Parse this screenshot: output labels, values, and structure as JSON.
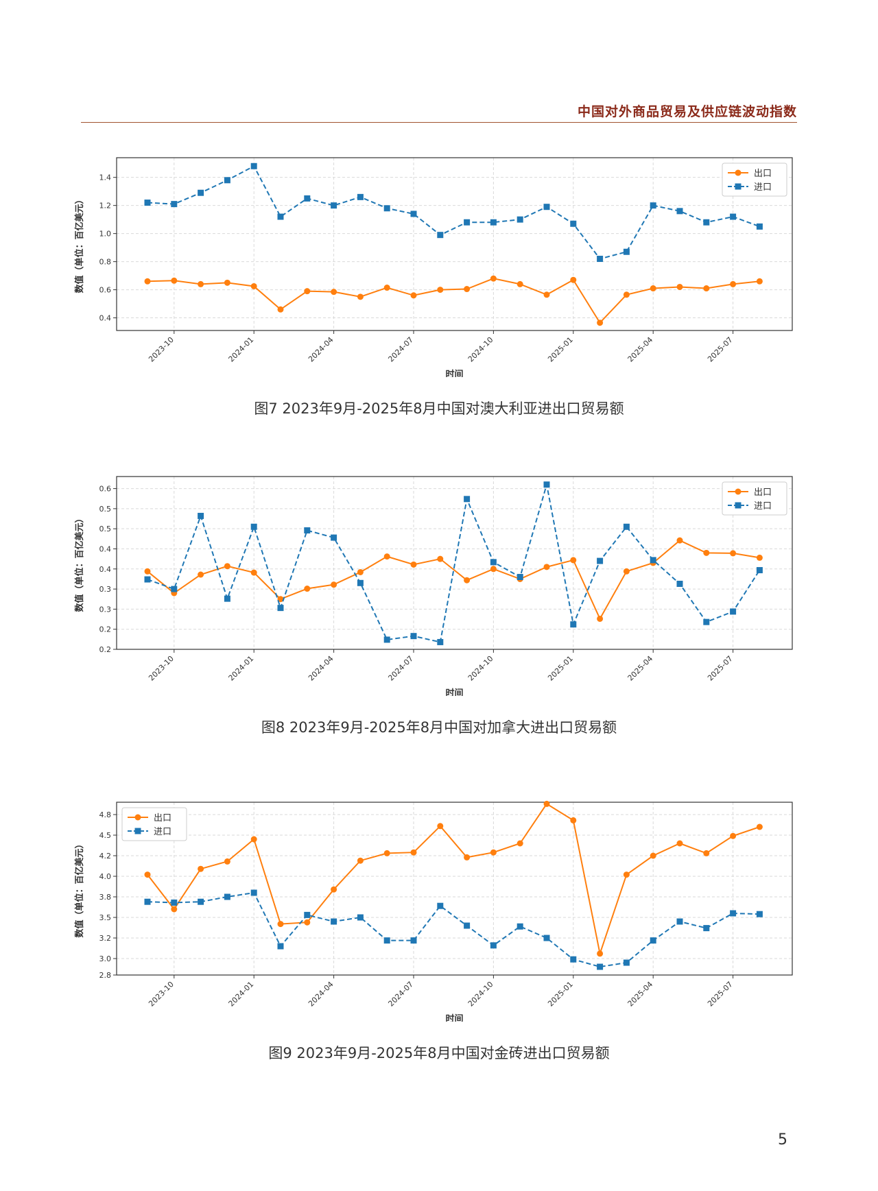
{
  "header": {
    "title": "中国对外商品贸易及供应链波动指数"
  },
  "page_number": "5",
  "chart_data": [
    {
      "type": "line",
      "caption": "图7   2023年9月-2025年8月中国对澳大利亚进出口贸易额",
      "xlabel": "时间",
      "ylabel": "数值（单位：百亿美元）",
      "grid": true,
      "legend_position": "top-right",
      "ylim": [
        0.31,
        1.54
      ],
      "yticks": [
        0.4,
        0.6,
        0.8,
        1.0,
        1.2,
        1.4
      ],
      "ytick_labels": [
        "0.4",
        "0.6",
        "0.8",
        "1.0",
        "1.2",
        "1.4"
      ],
      "x": [
        "2023-09",
        "2023-10",
        "2023-11",
        "2023-12",
        "2024-01",
        "2024-02",
        "2024-03",
        "2024-04",
        "2024-05",
        "2024-06",
        "2024-07",
        "2024-08",
        "2024-09",
        "2024-10",
        "2024-11",
        "2024-12",
        "2025-01",
        "2025-02",
        "2025-03",
        "2025-04",
        "2025-05",
        "2025-06",
        "2025-07",
        "2025-08"
      ],
      "xticks": [
        "2023-10",
        "2024-01",
        "2024-04",
        "2024-07",
        "2024-10",
        "2025-01",
        "2025-04",
        "2025-07"
      ],
      "series": [
        {
          "name": "出口",
          "color": "#ff7f0e",
          "style": "solid",
          "marker": "circle",
          "values": [
            0.66,
            0.665,
            0.64,
            0.65,
            0.625,
            0.46,
            0.59,
            0.585,
            0.55,
            0.615,
            0.56,
            0.6,
            0.605,
            0.68,
            0.64,
            0.565,
            0.67,
            0.365,
            0.565,
            0.61,
            0.62,
            0.61,
            0.64,
            0.66
          ]
        },
        {
          "name": "进口",
          "color": "#1f77b4",
          "style": "dashed",
          "marker": "square",
          "values": [
            1.22,
            1.21,
            1.29,
            1.38,
            1.48,
            1.12,
            1.25,
            1.2,
            1.26,
            1.18,
            1.14,
            0.99,
            1.08,
            1.08,
            1.1,
            1.19,
            1.07,
            0.82,
            0.87,
            1.2,
            1.16,
            1.08,
            1.12,
            1.05
          ]
        }
      ]
    },
    {
      "type": "line",
      "caption": "图8   2023年9月-2025年8月中国对加拿大进出口贸易额",
      "xlabel": "时间",
      "ylabel": "数值（单位：百亿美元）",
      "grid": true,
      "legend_position": "top-right",
      "ylim": [
        0.2,
        0.63
      ],
      "yticks": [
        0.2,
        0.25,
        0.3,
        0.35,
        0.4,
        0.45,
        0.5,
        0.55,
        0.6
      ],
      "ytick_labels": [
        "0.2",
        "0.2",
        "0.3",
        "0.3",
        "0.4",
        "0.4",
        "0.5",
        "0.5",
        "0.6"
      ],
      "x": [
        "2023-09",
        "2023-10",
        "2023-11",
        "2023-12",
        "2024-01",
        "2024-02",
        "2024-03",
        "2024-04",
        "2024-05",
        "2024-06",
        "2024-07",
        "2024-08",
        "2024-09",
        "2024-10",
        "2024-11",
        "2024-12",
        "2025-01",
        "2025-02",
        "2025-03",
        "2025-04",
        "2025-05",
        "2025-06",
        "2025-07",
        "2025-08"
      ],
      "xticks": [
        "2023-10",
        "2024-01",
        "2024-04",
        "2024-07",
        "2024-10",
        "2025-01",
        "2025-04",
        "2025-07"
      ],
      "series": [
        {
          "name": "出口",
          "color": "#ff7f0e",
          "style": "solid",
          "marker": "circle",
          "values": [
            0.394,
            0.34,
            0.386,
            0.407,
            0.391,
            0.325,
            0.351,
            0.361,
            0.392,
            0.431,
            0.411,
            0.425,
            0.372,
            0.4,
            0.375,
            0.405,
            0.422,
            0.276,
            0.394,
            0.415,
            0.471,
            0.44,
            0.439,
            0.428
          ]
        },
        {
          "name": "进口",
          "color": "#1f77b4",
          "style": "dashed",
          "marker": "square",
          "values": [
            0.374,
            0.35,
            0.532,
            0.326,
            0.505,
            0.303,
            0.496,
            0.478,
            0.365,
            0.224,
            0.233,
            0.218,
            0.574,
            0.417,
            0.38,
            0.61,
            0.262,
            0.42,
            0.505,
            0.422,
            0.363,
            0.268,
            0.294,
            0.397
          ]
        }
      ]
    },
    {
      "type": "line",
      "caption": "图9   2023年9月-2025年8月中国对金砖进出口贸易额",
      "xlabel": "时间",
      "ylabel": "数值（单位：百亿美元）",
      "grid": true,
      "legend_position": "top-left",
      "ylim": [
        2.8,
        4.9
      ],
      "yticks": [
        2.8,
        3.0,
        3.25,
        3.5,
        3.75,
        4.0,
        4.25,
        4.5,
        4.75
      ],
      "ytick_labels": [
        "2.8",
        "3.0",
        "3.2",
        "3.5",
        "3.8",
        "4.0",
        "4.2",
        "4.5",
        "4.8"
      ],
      "x": [
        "2023-09",
        "2023-10",
        "2023-11",
        "2023-12",
        "2024-01",
        "2024-02",
        "2024-03",
        "2024-04",
        "2024-05",
        "2024-06",
        "2024-07",
        "2024-08",
        "2024-09",
        "2024-10",
        "2024-11",
        "2024-12",
        "2025-01",
        "2025-02",
        "2025-03",
        "2025-04",
        "2025-05",
        "2025-06",
        "2025-07",
        "2025-08"
      ],
      "xticks": [
        "2023-10",
        "2024-01",
        "2024-04",
        "2024-07",
        "2024-10",
        "2025-01",
        "2025-04",
        "2025-07"
      ],
      "series": [
        {
          "name": "出口",
          "color": "#ff7f0e",
          "style": "solid",
          "marker": "circle",
          "values": [
            4.02,
            3.6,
            4.09,
            4.18,
            4.45,
            3.42,
            3.44,
            3.84,
            4.19,
            4.28,
            4.29,
            4.61,
            4.23,
            4.29,
            4.4,
            4.88,
            4.68,
            3.06,
            4.02,
            4.25,
            4.4,
            4.28,
            4.49,
            4.6
          ]
        },
        {
          "name": "进口",
          "color": "#1f77b4",
          "style": "dashed",
          "marker": "square",
          "values": [
            3.69,
            3.68,
            3.69,
            3.75,
            3.8,
            3.15,
            3.53,
            3.45,
            3.5,
            3.22,
            3.22,
            3.64,
            3.4,
            3.16,
            3.39,
            3.25,
            2.99,
            2.9,
            2.95,
            3.22,
            3.45,
            3.37,
            3.55,
            3.54
          ]
        }
      ]
    }
  ]
}
